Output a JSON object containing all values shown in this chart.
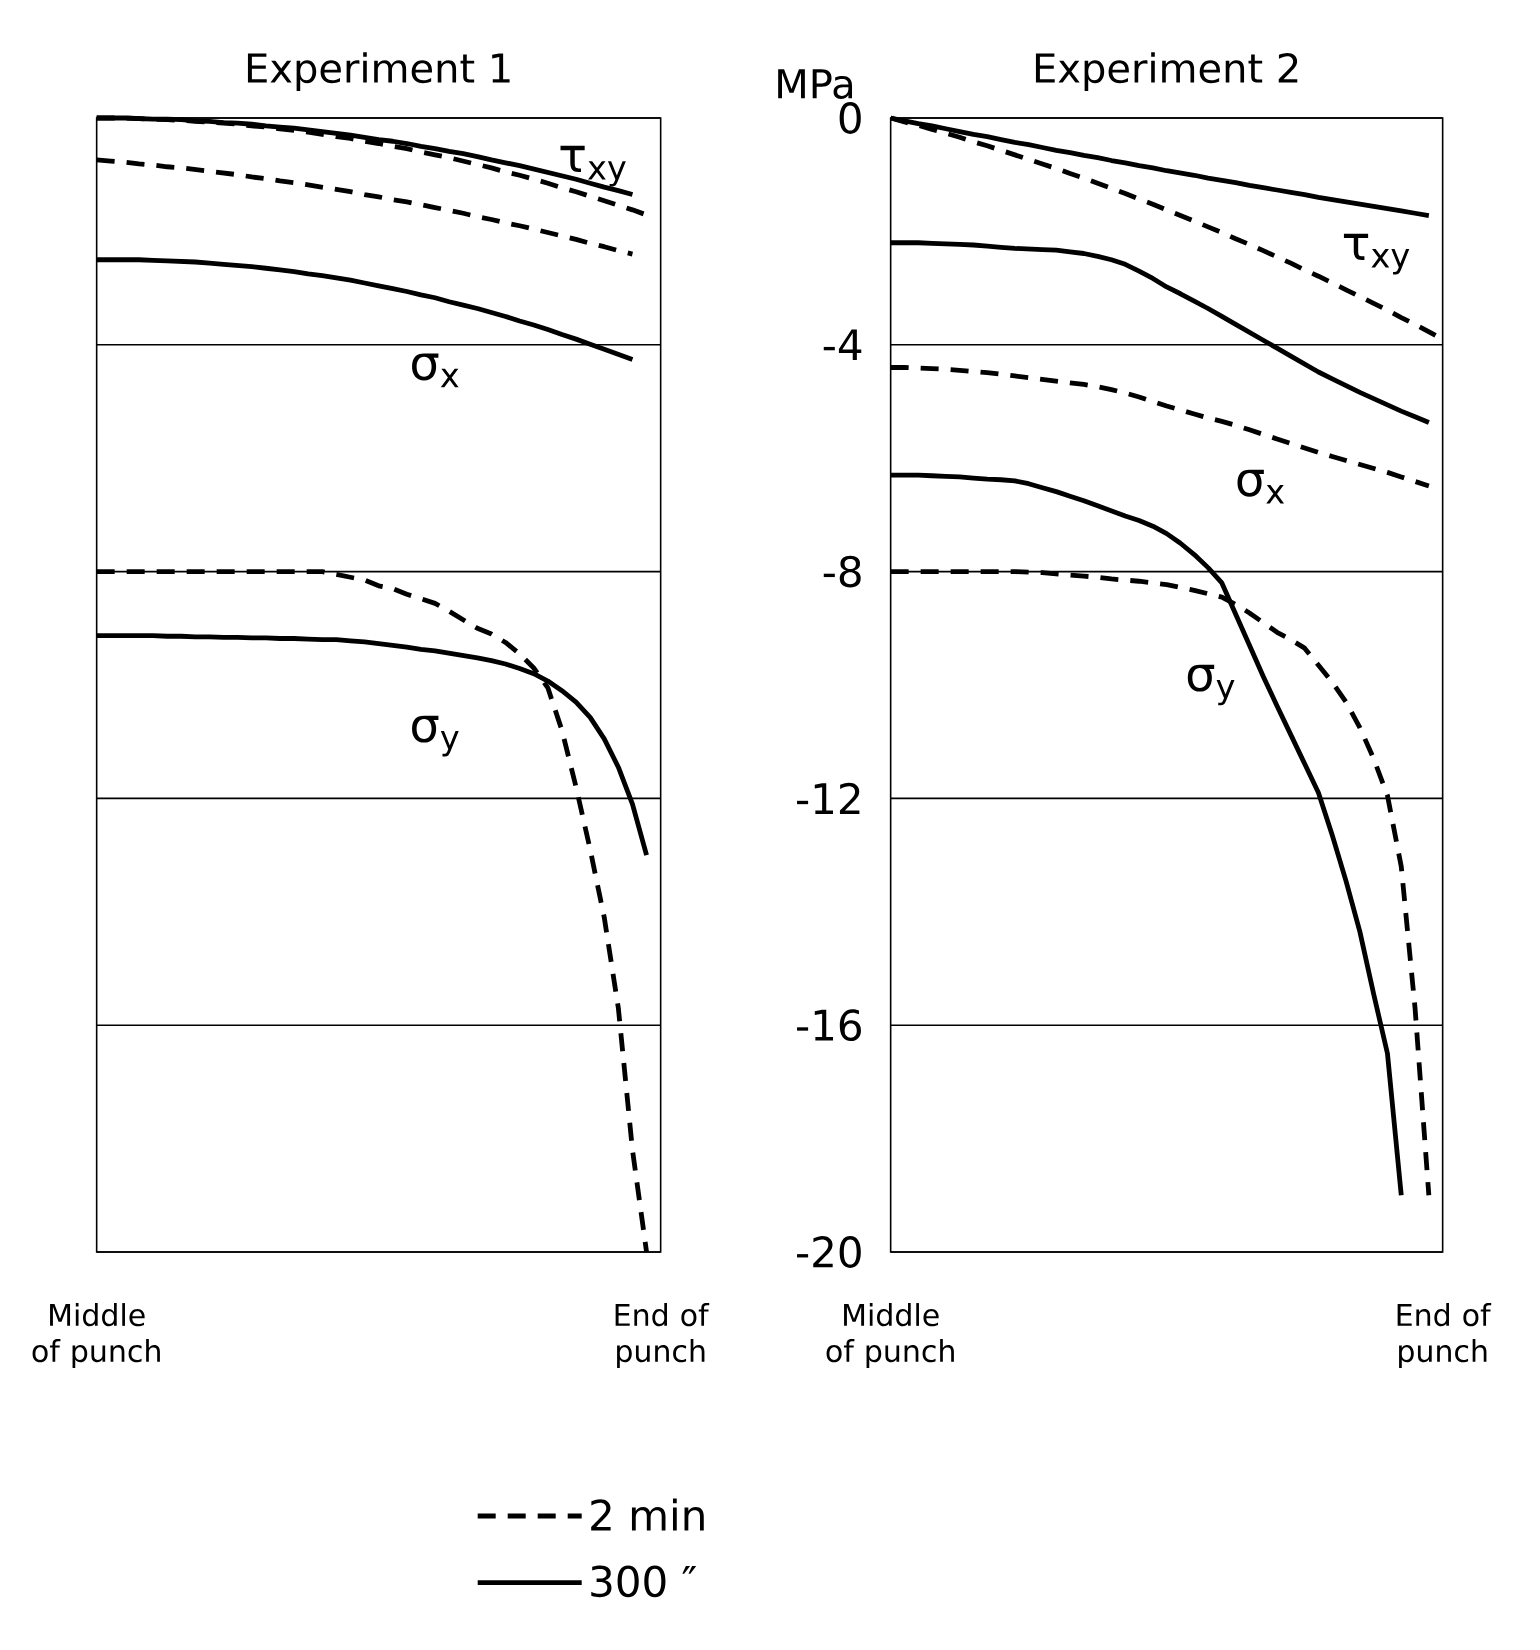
{
  "chart_data": [
    {
      "type": "line",
      "title": "Experiment 1",
      "ylim": [
        -20,
        0
      ],
      "categories": [
        "Middle of punch",
        null,
        null,
        null,
        null,
        null,
        null,
        null,
        null,
        null,
        null,
        null,
        null,
        null,
        null,
        null,
        null,
        null,
        null,
        null,
        null,
        null,
        null,
        null,
        null,
        null,
        null,
        null,
        null,
        null,
        null,
        null,
        null,
        null,
        null,
        null,
        null,
        null,
        null,
        null,
        "End of punch"
      ],
      "yticks": [
        0,
        -4,
        -8,
        -12,
        -16,
        -20
      ],
      "tick_labels": "x",
      "grid": "y",
      "legend": "bottom",
      "series": [
        {
          "name": "2 min",
          "color": "#000000",
          "line_style": "dashed",
          "values": [
            0,
            0,
            0,
            -0.01,
            -0.02,
            -0.03,
            -0.04,
            -0.06,
            -0.07,
            -0.09,
            -0.11,
            -0.14,
            -0.16,
            -0.19,
            -0.22,
            -0.25,
            -0.29,
            -0.33,
            -0.36,
            -0.41,
            -0.45,
            -0.5,
            -0.54,
            -0.6,
            -0.65,
            -0.7,
            -0.76,
            -0.82,
            -0.88,
            -0.95,
            -1.01,
            -1.08,
            -1.15,
            -1.23,
            -1.3,
            -1.38,
            -1.46,
            -1.54,
            -1.62,
            -1.71,
            null
          ]
        },
        {
          "name": "300 ″",
          "color": "#000000",
          "line_style": "solid",
          "values": [
            0,
            0,
            0,
            -0.01,
            -0.02,
            -0.02,
            -0.03,
            -0.05,
            -0.06,
            -0.08,
            -0.09,
            -0.11,
            -0.14,
            -0.16,
            -0.18,
            -0.21,
            -0.24,
            -0.27,
            -0.3,
            -0.34,
            -0.38,
            -0.41,
            -0.45,
            -0.5,
            -0.54,
            -0.59,
            -0.63,
            -0.68,
            -0.74,
            -0.79,
            -0.84,
            -0.9,
            -0.96,
            -1.02,
            -1.08,
            -1.15,
            -1.22,
            -1.28,
            -1.35,
            null,
            null
          ]
        },
        {
          "color": "#000000",
          "line_style": "dashed",
          "values": [
            -0.74,
            -0.76,
            -0.78,
            -0.81,
            -0.83,
            -0.86,
            -0.88,
            -0.91,
            -0.94,
            -0.97,
            -1.0,
            -1.04,
            -1.07,
            -1.11,
            -1.14,
            -1.18,
            -1.22,
            -1.26,
            -1.3,
            -1.35,
            -1.39,
            -1.44,
            -1.48,
            -1.53,
            -1.58,
            -1.63,
            -1.68,
            -1.74,
            -1.79,
            -1.85,
            -1.9,
            -1.96,
            -2.02,
            -2.08,
            -2.14,
            -2.21,
            -2.27,
            -2.34,
            -2.4,
            null,
            null
          ]
        },
        {
          "color": "#000000",
          "line_style": "solid",
          "values": [
            -2.5,
            -2.5,
            -2.5,
            -2.5,
            -2.51,
            -2.52,
            -2.53,
            -2.54,
            -2.56,
            -2.58,
            -2.6,
            -2.62,
            -2.65,
            -2.68,
            -2.71,
            -2.75,
            -2.78,
            -2.82,
            -2.86,
            -2.91,
            -2.96,
            -3.01,
            -3.06,
            -3.12,
            -3.17,
            -3.24,
            -3.3,
            -3.36,
            -3.43,
            -3.5,
            -3.58,
            -3.65,
            -3.73,
            -3.82,
            -3.9,
            -3.99,
            -4.08,
            -4.17,
            -4.26,
            null,
            null
          ]
        },
        {
          "color": "#000000",
          "line_style": "dashed",
          "values": [
            -8.0,
            -8.0,
            -8.0,
            -8.0,
            -8.0,
            -8.0,
            -8.0,
            -8.0,
            -8.0,
            -8.0,
            -8.0,
            -8.0,
            -8.0,
            -8.0,
            -8.0,
            -8.0,
            -8.0,
            -8.05,
            -8.1,
            -8.15,
            -8.25,
            -8.3,
            -8.4,
            -8.48,
            -8.56,
            -8.7,
            -8.85,
            -9.0,
            -9.1,
            -9.25,
            -9.45,
            -9.7,
            -10.05,
            -10.8,
            -11.8,
            -12.9,
            -14.1,
            -15.7,
            -18.2,
            -20.0,
            null
          ]
        },
        {
          "color": "#000000",
          "line_style": "solid",
          "values": [
            -9.13,
            -9.13,
            -9.13,
            -9.13,
            -9.13,
            -9.14,
            -9.14,
            -9.15,
            -9.15,
            -9.16,
            -9.16,
            -9.17,
            -9.17,
            -9.18,
            -9.18,
            -9.19,
            -9.2,
            -9.2,
            -9.22,
            -9.24,
            -9.27,
            -9.3,
            -9.33,
            -9.37,
            -9.4,
            -9.44,
            -9.48,
            -9.52,
            -9.57,
            -9.63,
            -9.71,
            -9.8,
            -9.93,
            -10.1,
            -10.3,
            -10.57,
            -10.95,
            -11.45,
            -12.1,
            -13.0,
            null
          ]
        }
      ],
      "annotations": [
        "τ$_{xy}$",
        "σ$_{x}$",
        "σ$_{y}$"
      ]
    },
    {
      "type": "line",
      "title": "Experiment 2",
      "ylabel": "MPa",
      "ylim": [
        -20,
        0
      ],
      "categories": [
        "Middle of punch",
        null,
        null,
        null,
        null,
        null,
        null,
        null,
        null,
        null,
        null,
        null,
        null,
        null,
        null,
        null,
        null,
        null,
        null,
        null,
        null,
        null,
        null,
        null,
        null,
        null,
        null,
        null,
        null,
        null,
        null,
        null,
        null,
        null,
        null,
        null,
        null,
        null,
        null,
        null,
        "End of punch"
      ],
      "yticks": [
        0,
        -4,
        -8,
        -12,
        -16,
        -20
      ],
      "grid": "y",
      "series": [
        {
          "color": "#000000",
          "line_style": "dashed",
          "values": [
            0,
            -0.07,
            -0.13,
            -0.2,
            -0.27,
            -0.34,
            -0.42,
            -0.49,
            -0.57,
            -0.65,
            -0.73,
            -0.81,
            -0.89,
            -0.98,
            -1.06,
            -1.15,
            -1.24,
            -1.33,
            -1.43,
            -1.52,
            -1.62,
            -1.72,
            -1.82,
            -1.92,
            -2.02,
            -2.13,
            -2.23,
            -2.34,
            -2.45,
            -2.56,
            -2.68,
            -2.79,
            -2.91,
            -3.03,
            -3.15,
            -3.27,
            -3.39,
            -3.52,
            -3.64,
            -3.77,
            -3.9
          ]
        },
        {
          "color": "#000000",
          "line_style": "solid",
          "values": [
            0,
            -0.05,
            -0.1,
            -0.14,
            -0.19,
            -0.24,
            -0.29,
            -0.33,
            -0.38,
            -0.43,
            -0.47,
            -0.52,
            -0.57,
            -0.61,
            -0.66,
            -0.7,
            -0.75,
            -0.79,
            -0.84,
            -0.88,
            -0.93,
            -0.97,
            -1.01,
            -1.06,
            -1.1,
            -1.14,
            -1.19,
            -1.23,
            -1.27,
            -1.31,
            -1.35,
            -1.4,
            -1.44,
            -1.48,
            -1.52,
            -1.56,
            -1.6,
            -1.64,
            -1.68,
            -1.72,
            null
          ]
        },
        {
          "color": "#000000",
          "line_style": "dashed",
          "values": [
            -4.4,
            -4.4,
            -4.41,
            -4.42,
            -4.43,
            -4.45,
            -4.47,
            -4.49,
            -4.52,
            -4.55,
            -4.58,
            -4.61,
            -4.64,
            -4.67,
            -4.7,
            -4.74,
            -4.79,
            -4.85,
            -4.92,
            -5.0,
            -5.08,
            -5.15,
            -5.22,
            -5.29,
            -5.35,
            -5.42,
            -5.5,
            -5.58,
            -5.66,
            -5.74,
            -5.82,
            -5.9,
            -5.97,
            -6.04,
            -6.11,
            -6.18,
            -6.25,
            -6.33,
            -6.41,
            -6.49,
            null
          ]
        },
        {
          "color": "#000000",
          "line_style": "solid",
          "values": [
            -2.2,
            -2.2,
            -2.2,
            -2.21,
            -2.22,
            -2.23,
            -2.24,
            -2.26,
            -2.28,
            -2.3,
            -2.31,
            -2.32,
            -2.33,
            -2.36,
            -2.39,
            -2.44,
            -2.5,
            -2.58,
            -2.7,
            -2.83,
            -2.98,
            -3.1,
            -3.23,
            -3.36,
            -3.5,
            -3.64,
            -3.78,
            -3.92,
            -4.06,
            -4.2,
            -4.34,
            -4.48,
            -4.6,
            -4.72,
            -4.84,
            -4.95,
            -5.06,
            -5.17,
            -5.27,
            -5.37,
            null
          ]
        },
        {
          "color": "#000000",
          "line_style": "dashed",
          "values": [
            -8.0,
            -8.0,
            -8.0,
            -8.0,
            -8.0,
            -8.0,
            -8.0,
            -8.0,
            -8.0,
            -8.0,
            -8.01,
            -8.02,
            -8.04,
            -8.06,
            -8.08,
            -8.1,
            -8.13,
            -8.15,
            -8.17,
            -8.2,
            -8.23,
            -8.28,
            -8.33,
            -8.39,
            -8.45,
            -8.58,
            -8.73,
            -8.9,
            -9.07,
            -9.2,
            -9.35,
            -9.65,
            -9.95,
            -10.3,
            -10.75,
            -11.3,
            -11.95,
            -13.2,
            -15.7,
            -19.0,
            null
          ]
        },
        {
          "color": "#000000",
          "line_style": "solid",
          "values": [
            -6.3,
            -6.3,
            -6.3,
            -6.31,
            -6.32,
            -6.33,
            -6.35,
            -6.37,
            -6.38,
            -6.4,
            -6.45,
            -6.52,
            -6.59,
            -6.67,
            -6.75,
            -6.84,
            -6.93,
            -7.02,
            -7.1,
            -7.2,
            -7.33,
            -7.5,
            -7.7,
            -7.93,
            -8.2,
            -8.75,
            -9.3,
            -9.85,
            -10.37,
            -10.88,
            -11.39,
            -11.9,
            -12.65,
            -13.46,
            -14.35,
            -15.45,
            -16.5,
            -19.0,
            null,
            null,
            null
          ]
        }
      ],
      "annotations": [
        "τ$_{xy}$",
        "σ$_{x}$",
        "σ$_{y}$"
      ]
    }
  ]
}
